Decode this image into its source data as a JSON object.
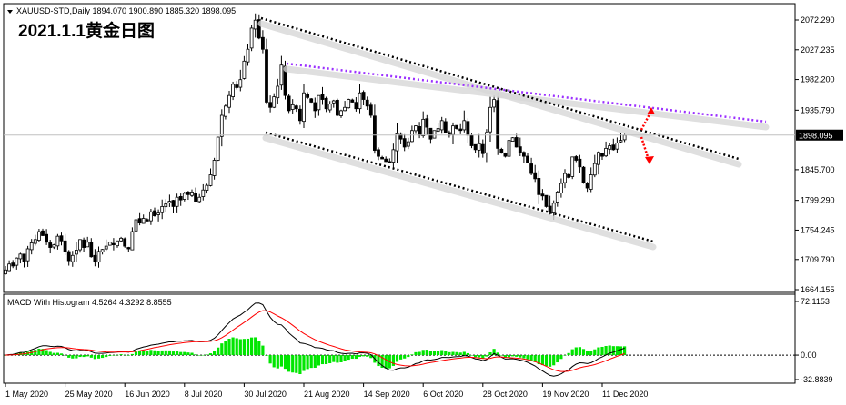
{
  "header": {
    "symbol_line": "XAUUSD-STD,Daily  1894.070 1900.890 1885.320 1898.095",
    "overlay_title": "2021.1.1黄金日图"
  },
  "price_axis": {
    "ticks": [
      "2072.290",
      "2027.235",
      "1982.200",
      "1935.790",
      "1898.095",
      "1845.700",
      "1799.290",
      "1754.245",
      "1709.790",
      "1664.155"
    ],
    "current_price": "1898.095"
  },
  "macd_panel": {
    "label": "MACD With Histogram 4.5264 4.3292 8.8555",
    "ticks": [
      "72.1153",
      "0.00",
      "-32.8839"
    ]
  },
  "time_axis": {
    "labels": [
      "1 May 2020",
      "25 May 2020",
      "16 Jun 2020",
      "8 Jul 2020",
      "30 Jul 2020",
      "21 Aug 2020",
      "14 Sep 2020",
      "6 Oct 2020",
      "28 Oct 2020",
      "19 Nov 2020",
      "11 Dec 2020"
    ]
  },
  "colors": {
    "candle": "#000000",
    "channel_lines": "#000000",
    "resistance_line": "#9b30ff",
    "arrows": "#ff0000",
    "macd_histogram": "#00e600",
    "macd_line": "#000000",
    "signal_line": "#ff0000"
  },
  "chart_data": [
    {
      "type": "candlestick",
      "symbol": "XAUUSD-STD",
      "timeframe": "Daily",
      "last_bar": {
        "open": 1894.07,
        "high": 1900.89,
        "low": 1885.32,
        "close": 1898.095
      },
      "ylim": [
        1664.155,
        2090
      ],
      "x_labels": [
        "1 May 2020",
        "25 May 2020",
        "16 Jun 2020",
        "8 Jul 2020",
        "30 Jul 2020",
        "21 Aug 2020",
        "14 Sep 2020",
        "6 Oct 2020",
        "28 Oct 2020",
        "19 Nov 2020",
        "11 Dec 2020"
      ],
      "closes": [
        1694,
        1703,
        1700,
        1712,
        1718,
        1706,
        1726,
        1735,
        1740,
        1752,
        1746,
        1736,
        1728,
        1732,
        1745,
        1738,
        1722,
        1708,
        1716,
        1724,
        1740,
        1728,
        1736,
        1714,
        1706,
        1722,
        1725,
        1730,
        1736,
        1732,
        1738,
        1742,
        1730,
        1726,
        1752,
        1770,
        1765,
        1772,
        1768,
        1782,
        1776,
        1780,
        1790,
        1794,
        1798,
        1790,
        1804,
        1800,
        1810,
        1808,
        1812,
        1798,
        1804,
        1815,
        1822,
        1838,
        1860,
        1895,
        1928,
        1942,
        1958,
        1975,
        1970,
        1982,
        2010,
        2028,
        2060,
        2072,
        2045,
        2028,
        1948,
        1940,
        1956,
        1972,
        2004,
        1958,
        1935,
        1944,
        1938,
        1920,
        1962,
        1955,
        1948,
        1935,
        1958,
        1952,
        1938,
        1945,
        1950,
        1928,
        1935,
        1940,
        1952,
        1948,
        1938,
        1962,
        1952,
        1942,
        1928,
        1875,
        1866,
        1862,
        1858,
        1856,
        1876,
        1900,
        1892,
        1880,
        1888,
        1905,
        1912,
        1898,
        1922,
        1910,
        1892,
        1905,
        1908,
        1920,
        1902,
        1898,
        1912,
        1908,
        1905,
        1920,
        1898,
        1882,
        1876,
        1885,
        1870,
        1902,
        1940,
        1952,
        1878,
        1872,
        1866,
        1890,
        1894,
        1880,
        1872,
        1866,
        1856,
        1840,
        1832,
        1808,
        1806,
        1790,
        1782,
        1795,
        1812,
        1825,
        1840,
        1834,
        1865,
        1860,
        1850,
        1826,
        1818,
        1838,
        1855,
        1872,
        1866,
        1878,
        1882,
        1876,
        1886,
        1890,
        1898
      ]
    },
    {
      "type": "macd",
      "label": "MACD With Histogram",
      "values": {
        "macd": 4.5264,
        "signal": 4.3292,
        "histogram": 8.8555
      },
      "ylim": [
        -32.8839,
        72.1153
      ]
    }
  ]
}
